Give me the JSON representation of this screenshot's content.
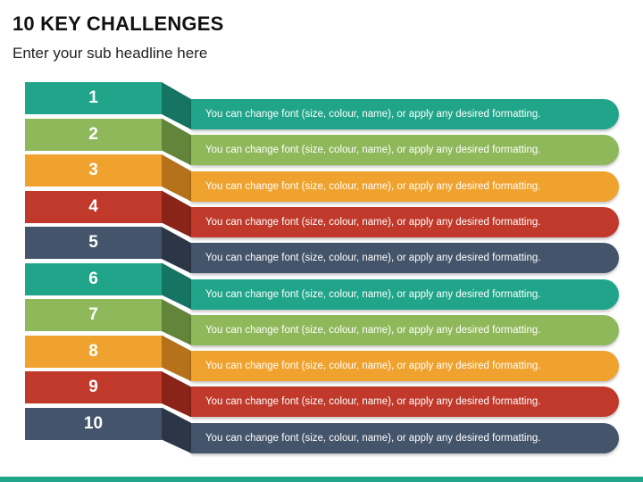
{
  "header": {
    "title": "10 KEY CHALLENGES",
    "subtitle": "Enter your sub headline here"
  },
  "items": [
    {
      "number": "1",
      "text": "You can change font (size, colour, name), or apply any desired formatting.",
      "color": "#21a58a",
      "shade": "#167463"
    },
    {
      "number": "2",
      "text": "You can change font (size, colour, name), or apply any desired formatting.",
      "color": "#8fb85a",
      "shade": "#62853a"
    },
    {
      "number": "3",
      "text": "You can change font (size, colour, name), or apply any desired formatting.",
      "color": "#f0a22e",
      "shade": "#b5721a"
    },
    {
      "number": "4",
      "text": "You can change font (size, colour, name), or apply any desired formatting.",
      "color": "#c0392b",
      "shade": "#8a2419"
    },
    {
      "number": "5",
      "text": "You can change font (size, colour, name), or apply any desired formatting.",
      "color": "#44546a",
      "shade": "#2b3746"
    },
    {
      "number": "6",
      "text": "You can change font (size, colour, name), or apply any desired formatting.",
      "color": "#21a58a",
      "shade": "#167463"
    },
    {
      "number": "7",
      "text": "You can change font (size, colour, name), or apply any desired formatting.",
      "color": "#8fb85a",
      "shade": "#62853a"
    },
    {
      "number": "8",
      "text": "You can change font (size, colour, name), or apply any desired formatting.",
      "color": "#f0a22e",
      "shade": "#b5721a"
    },
    {
      "number": "9",
      "text": "You can change font (size, colour, name), or apply any desired formatting.",
      "color": "#c0392b",
      "shade": "#8a2419"
    },
    {
      "number": "10",
      "text": "You can change font (size, colour, name), or apply any desired formatting.",
      "color": "#44546a",
      "shade": "#2b3746"
    }
  ]
}
